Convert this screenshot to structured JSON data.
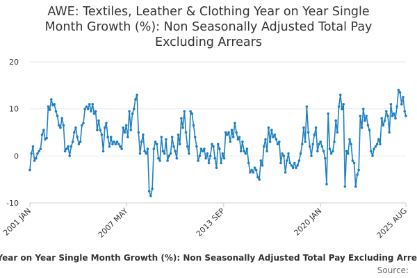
{
  "chart_data": {
    "type": "line",
    "title": "AWE: Textiles, Leather & Clothing Year on Year Single Month Growth (%): Non Seasonally Adjusted Total Pay Excluding Arrears",
    "title_lines": [
      "AWE: Textiles, Leather & Clothing Year on Year Single",
      "Month Growth (%): Non Seasonally Adjusted Total Pay",
      "Excluding Arrears"
    ],
    "xlabel": "",
    "ylabel": "",
    "ylim": [
      -10,
      20
    ],
    "yticks": [
      -10,
      0,
      10,
      20
    ],
    "grid": true,
    "xticks": [
      {
        "label": "2001 JAN",
        "t": 2001.0
      },
      {
        "label": "2007 MAY",
        "t": 2007.33
      },
      {
        "label": "2013 SEP",
        "t": 2013.67
      },
      {
        "label": "2020 JAN",
        "t": 2020.0
      },
      {
        "label": "2025 AUG",
        "t": 2025.58
      }
    ],
    "xrange": [
      2001.0,
      2025.58
    ],
    "series": [
      {
        "name": "AWE: Textiles, Leather & Clothing Year on Year Single Month Growth (%): Non Seasonally Adjusted Total Pay Excluding Arrears",
        "color": "#1f7fc0",
        "points": [
          [
            2001.0,
            -3.0
          ],
          [
            2001.1,
            0.5
          ],
          [
            2001.2,
            2.0
          ],
          [
            2001.3,
            -1.0
          ],
          [
            2001.4,
            -0.5
          ],
          [
            2001.5,
            0.5
          ],
          [
            2001.6,
            1.0
          ],
          [
            2001.7,
            1.5
          ],
          [
            2001.8,
            4.5
          ],
          [
            2001.9,
            5.5
          ],
          [
            2002.0,
            3.5
          ],
          [
            2002.1,
            3.8
          ],
          [
            2002.2,
            10.5
          ],
          [
            2002.3,
            9.8
          ],
          [
            2002.4,
            12.0
          ],
          [
            2002.5,
            10.8
          ],
          [
            2002.6,
            11.0
          ],
          [
            2002.7,
            9.5
          ],
          [
            2002.8,
            8.5
          ],
          [
            2002.9,
            6.5
          ],
          [
            2003.0,
            6.0
          ],
          [
            2003.1,
            8.0
          ],
          [
            2003.2,
            6.5
          ],
          [
            2003.3,
            1.0
          ],
          [
            2003.4,
            1.5
          ],
          [
            2003.5,
            2.0
          ],
          [
            2003.6,
            0.0
          ],
          [
            2003.7,
            2.0
          ],
          [
            2003.8,
            3.0
          ],
          [
            2003.9,
            5.0
          ],
          [
            2004.0,
            6.0
          ],
          [
            2004.1,
            4.0
          ],
          [
            2004.2,
            2.5
          ],
          [
            2004.3,
            3.0
          ],
          [
            2004.4,
            6.5
          ],
          [
            2004.5,
            7.0
          ],
          [
            2004.6,
            10.0
          ],
          [
            2004.7,
            10.5
          ],
          [
            2004.8,
            10.0
          ],
          [
            2004.9,
            11.0
          ],
          [
            2005.0,
            9.5
          ],
          [
            2005.1,
            11.0
          ],
          [
            2005.2,
            9.0
          ],
          [
            2005.3,
            9.5
          ],
          [
            2005.4,
            5.5
          ],
          [
            2005.5,
            7.5
          ],
          [
            2005.6,
            5.5
          ],
          [
            2005.7,
            4.5
          ],
          [
            2005.8,
            1.0
          ],
          [
            2005.9,
            6.0
          ],
          [
            2006.0,
            7.0
          ],
          [
            2006.1,
            4.0
          ],
          [
            2006.2,
            2.0
          ],
          [
            2006.3,
            4.0
          ],
          [
            2006.4,
            2.5
          ],
          [
            2006.5,
            3.0
          ],
          [
            2006.6,
            2.5
          ],
          [
            2006.7,
            3.0
          ],
          [
            2006.8,
            2.5
          ],
          [
            2006.9,
            2.0
          ],
          [
            2007.0,
            1.5
          ],
          [
            2007.1,
            6.0
          ],
          [
            2007.2,
            5.0
          ],
          [
            2007.3,
            6.5
          ],
          [
            2007.4,
            4.0
          ],
          [
            2007.5,
            9.5
          ],
          [
            2007.6,
            5.5
          ],
          [
            2007.7,
            9.0
          ],
          [
            2007.8,
            10.0
          ],
          [
            2007.9,
            12.0
          ],
          [
            2008.0,
            13.0
          ],
          [
            2008.1,
            5.0
          ],
          [
            2008.2,
            0.5
          ],
          [
            2008.3,
            3.0
          ],
          [
            2008.4,
            4.5
          ],
          [
            2008.5,
            1.0
          ],
          [
            2008.6,
            0.5
          ],
          [
            2008.7,
            1.5
          ],
          [
            2008.8,
            -7.5
          ],
          [
            2008.9,
            -8.5
          ],
          [
            2009.0,
            -7.0
          ],
          [
            2009.1,
            1.5
          ],
          [
            2009.2,
            3.0
          ],
          [
            2009.3,
            2.5
          ],
          [
            2009.4,
            -0.5
          ],
          [
            2009.5,
            -1.0
          ],
          [
            2009.6,
            4.0
          ],
          [
            2009.7,
            1.0
          ],
          [
            2009.8,
            0.5
          ],
          [
            2009.9,
            3.5
          ],
          [
            2010.0,
            -1.0
          ],
          [
            2010.1,
            0.0
          ],
          [
            2010.2,
            0.5
          ],
          [
            2010.3,
            4.0
          ],
          [
            2010.4,
            2.0
          ],
          [
            2010.5,
            1.0
          ],
          [
            2010.6,
            -0.5
          ],
          [
            2010.7,
            4.5
          ],
          [
            2010.8,
            2.5
          ],
          [
            2010.9,
            8.0
          ],
          [
            2011.0,
            6.0
          ],
          [
            2011.1,
            9.5
          ],
          [
            2011.2,
            5.0
          ],
          [
            2011.3,
            2.0
          ],
          [
            2011.4,
            0.5
          ],
          [
            2011.5,
            9.5
          ],
          [
            2011.6,
            9.0
          ],
          [
            2011.7,
            6.5
          ],
          [
            2011.8,
            4.0
          ],
          [
            2011.9,
            2.0
          ],
          [
            2012.0,
            -1.0
          ],
          [
            2012.1,
            0.0
          ],
          [
            2012.2,
            1.5
          ],
          [
            2012.3,
            1.0
          ],
          [
            2012.4,
            1.5
          ],
          [
            2012.5,
            -0.5
          ],
          [
            2012.6,
            0.5
          ],
          [
            2012.7,
            -1.5
          ],
          [
            2012.8,
            0.0
          ],
          [
            2012.9,
            2.5
          ],
          [
            2013.0,
            2.0
          ],
          [
            2013.1,
            -0.5
          ],
          [
            2013.2,
            -2.5
          ],
          [
            2013.3,
            2.5
          ],
          [
            2013.4,
            1.5
          ],
          [
            2013.5,
            -1.5
          ],
          [
            2013.6,
            0.5
          ],
          [
            2013.7,
            -0.5
          ],
          [
            2013.8,
            5.0
          ],
          [
            2013.9,
            4.5
          ],
          [
            2014.0,
            5.0
          ],
          [
            2014.1,
            3.0
          ],
          [
            2014.2,
            5.5
          ],
          [
            2014.3,
            4.0
          ],
          [
            2014.4,
            7.0
          ],
          [
            2014.5,
            5.0
          ],
          [
            2014.6,
            3.5
          ],
          [
            2014.7,
            4.0
          ],
          [
            2014.8,
            1.0
          ],
          [
            2014.9,
            3.0
          ],
          [
            2015.0,
            1.0
          ],
          [
            2015.1,
            0.5
          ],
          [
            2015.2,
            1.5
          ],
          [
            2015.3,
            -1.5
          ],
          [
            2015.4,
            -3.5
          ],
          [
            2015.5,
            -3.0
          ],
          [
            2015.6,
            -3.5
          ],
          [
            2015.7,
            -2.5
          ],
          [
            2015.8,
            -3.0
          ],
          [
            2015.9,
            -4.5
          ],
          [
            2016.0,
            -5.0
          ],
          [
            2016.1,
            -1.0
          ],
          [
            2016.2,
            -2.0
          ],
          [
            2016.3,
            2.0
          ],
          [
            2016.4,
            3.5
          ],
          [
            2016.5,
            1.0
          ],
          [
            2016.6,
            6.0
          ],
          [
            2016.7,
            3.0
          ],
          [
            2016.8,
            5.5
          ],
          [
            2016.9,
            4.0
          ],
          [
            2017.0,
            4.5
          ],
          [
            2017.1,
            3.5
          ],
          [
            2017.2,
            2.5
          ],
          [
            2017.3,
            3.0
          ],
          [
            2017.4,
            -1.5
          ],
          [
            2017.5,
            0.5
          ],
          [
            2017.6,
            0.0
          ],
          [
            2017.7,
            -3.5
          ],
          [
            2017.8,
            -1.0
          ],
          [
            2017.9,
            0.5
          ],
          [
            2018.0,
            -1.5
          ],
          [
            2018.1,
            -2.0
          ],
          [
            2018.2,
            -2.5
          ],
          [
            2018.3,
            -1.5
          ],
          [
            2018.4,
            -2.5
          ],
          [
            2018.5,
            -2.0
          ],
          [
            2018.6,
            -1.0
          ],
          [
            2018.7,
            0.5
          ],
          [
            2018.8,
            2.5
          ],
          [
            2018.9,
            6.0
          ],
          [
            2019.0,
            3.0
          ],
          [
            2019.1,
            10.5
          ],
          [
            2019.2,
            5.0
          ],
          [
            2019.3,
            2.0
          ],
          [
            2019.4,
            0.0
          ],
          [
            2019.5,
            2.5
          ],
          [
            2019.6,
            4.5
          ],
          [
            2019.7,
            6.0
          ],
          [
            2019.8,
            1.0
          ],
          [
            2019.9,
            2.5
          ],
          [
            2020.0,
            3.0
          ],
          [
            2020.1,
            2.0
          ],
          [
            2020.2,
            1.0
          ],
          [
            2020.3,
            -0.5
          ],
          [
            2020.4,
            -6.0
          ],
          [
            2020.5,
            9.0
          ],
          [
            2020.6,
            1.5
          ],
          [
            2020.7,
            0.5
          ],
          [
            2020.8,
            1.0
          ],
          [
            2020.9,
            3.0
          ],
          [
            2021.0,
            7.5
          ],
          [
            2021.1,
            5.0
          ],
          [
            2021.2,
            10.5
          ],
          [
            2021.3,
            13.0
          ],
          [
            2021.4,
            10.0
          ],
          [
            2021.5,
            11.0
          ],
          [
            2021.6,
            -6.5
          ],
          [
            2021.7,
            1.0
          ],
          [
            2021.8,
            0.5
          ],
          [
            2021.9,
            3.5
          ],
          [
            2022.0,
            2.5
          ],
          [
            2022.1,
            -1.0
          ],
          [
            2022.2,
            -1.5
          ],
          [
            2022.3,
            -6.5
          ],
          [
            2022.4,
            -4.0
          ],
          [
            2022.5,
            -3.0
          ],
          [
            2022.6,
            8.5
          ],
          [
            2022.7,
            6.0
          ],
          [
            2022.8,
            10.0
          ],
          [
            2022.9,
            7.5
          ],
          [
            2023.0,
            8.5
          ],
          [
            2023.1,
            6.5
          ],
          [
            2023.2,
            5.5
          ],
          [
            2023.3,
            1.0
          ],
          [
            2023.4,
            0.0
          ],
          [
            2023.5,
            1.5
          ],
          [
            2023.6,
            2.0
          ],
          [
            2023.7,
            2.5
          ],
          [
            2023.8,
            3.5
          ],
          [
            2023.9,
            2.5
          ],
          [
            2024.0,
            8.0
          ],
          [
            2024.1,
            6.5
          ],
          [
            2024.2,
            7.5
          ],
          [
            2024.3,
            9.5
          ],
          [
            2024.4,
            8.5
          ],
          [
            2024.5,
            5.0
          ],
          [
            2024.6,
            11.0
          ],
          [
            2024.7,
            8.5
          ],
          [
            2024.8,
            9.0
          ],
          [
            2024.9,
            8.0
          ],
          [
            2025.0,
            10.5
          ],
          [
            2025.1,
            14.0
          ],
          [
            2025.2,
            13.5
          ],
          [
            2025.3,
            11.0
          ],
          [
            2025.4,
            12.5
          ],
          [
            2025.5,
            9.5
          ],
          [
            2025.58,
            8.5
          ]
        ]
      }
    ]
  },
  "legend": {
    "text": "AWE: Textiles, Leather & Clothing Year on Year Single Month Growth (%): Non Seasonally Adjusted Total Pay Excluding Arrears"
  },
  "source": {
    "text": "Source:"
  }
}
